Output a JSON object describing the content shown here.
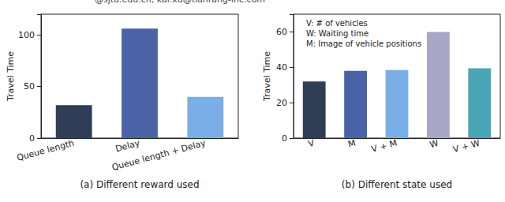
{
  "header": "@sjtu.edu.cn, kai.xu@tianrang-inc.com",
  "chart_data": [
    {
      "type": "bar",
      "xlabel": "(a) Different reward used",
      "ylabel": "Travel Time",
      "categories": [
        "Queue length",
        "Delay",
        "Queue length + Delay"
      ],
      "values": [
        32,
        106,
        40
      ],
      "colors": [
        "#2f3d57",
        "#4a62a6",
        "#7aaee6"
      ],
      "ylim": [
        0,
        120
      ],
      "yticks": [
        0,
        50,
        100
      ]
    },
    {
      "type": "bar",
      "xlabel": "(b) Different state used",
      "ylabel": "Travel Time",
      "categories": [
        "V",
        "M",
        "V + M",
        "W",
        "V + W"
      ],
      "values": [
        32,
        38,
        38.5,
        60,
        39.5
      ],
      "colors": [
        "#2f3d57",
        "#4a62a6",
        "#7aaee6",
        "#a9a7c6",
        "#4aa5b6"
      ],
      "ylim": [
        0,
        70
      ],
      "yticks": [
        0,
        20,
        40,
        60
      ],
      "annotations": [
        "V: # of vehicles",
        "W: Waiting time",
        "M: Image of vehicle positions"
      ]
    }
  ]
}
